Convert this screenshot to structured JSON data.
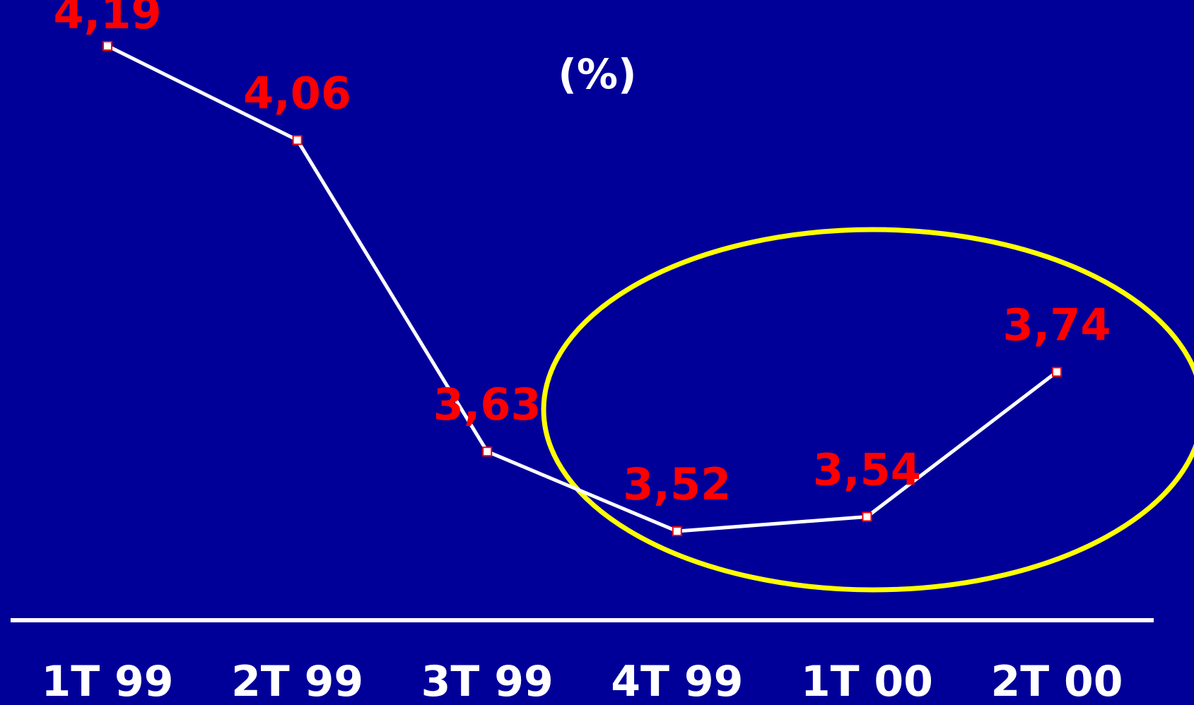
{
  "chart_data": {
    "type": "line",
    "title": "(%)",
    "categories": [
      "1T 99",
      "2T 99",
      "3T 99",
      "4T 99",
      "1T 00",
      "2T 00"
    ],
    "series": [
      {
        "values": [
          4.19,
          4.06,
          3.63,
          3.52,
          3.54,
          3.74
        ],
        "labels": [
          "4,19",
          "4,06",
          "3,63",
          "3,52",
          "3,54",
          "3,74"
        ]
      }
    ],
    "ylim": [
      3.05,
      4.25
    ],
    "grid": false,
    "annotation": "highlight-ellipse around 4T 99 to 2T 00"
  },
  "colors": {
    "background": "#000099",
    "line": "#ffffff",
    "data_label": "#ff0000",
    "marker_border": "#ff0000",
    "marker_fill": "#ffffff",
    "axis": "#ffffff",
    "title": "#ffffff",
    "category_label": "#ffffff",
    "highlight": "#ffff00"
  }
}
